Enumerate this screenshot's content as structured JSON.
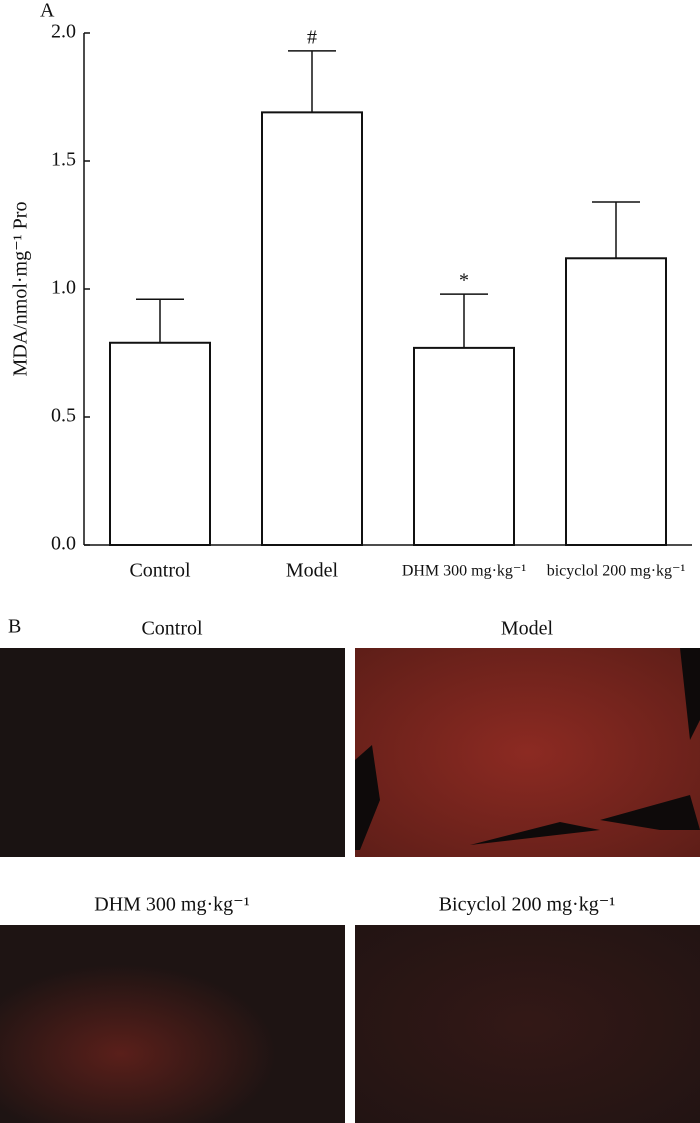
{
  "chart_data": {
    "type": "bar",
    "panel_label": "A",
    "y_label": "MDA/nmol·mg⁻¹ Pro",
    "categories": [
      "Control",
      "Model",
      "DHM 300 mg·kg⁻¹",
      "bicyclol 200 mg·kg⁻¹"
    ],
    "values": [
      0.79,
      1.69,
      0.77,
      1.12
    ],
    "errors": [
      0.17,
      0.24,
      0.21,
      0.22
    ],
    "color": "#ffffff",
    "ylim": [
      0,
      2.0
    ],
    "yticks": [
      {
        "value": 0,
        "label": "0.0"
      },
      {
        "value": 0.5,
        "label": "0.5"
      },
      {
        "value": 1.0,
        "label": "1.0"
      },
      {
        "value": 1.5,
        "label": "1.5"
      },
      {
        "value": 2.0,
        "label": "2.0"
      }
    ],
    "annotations": [
      {
        "text": "#",
        "category": "Model"
      },
      {
        "text": "*",
        "category": "DHM 300 mg·kg⁻¹"
      }
    ]
  },
  "panel_b": {
    "label": "B",
    "images": [
      {
        "title": "Control"
      },
      {
        "title": "Model"
      },
      {
        "title": "DHM 300 mg·kg⁻¹"
      },
      {
        "title": "Bicyclol 200 mg·kg⁻¹"
      }
    ]
  }
}
